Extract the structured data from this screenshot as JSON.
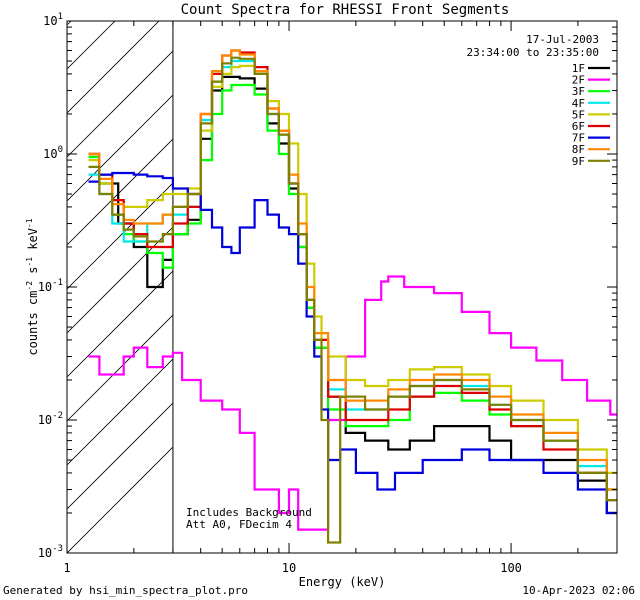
{
  "chart_data": {
    "type": "line",
    "title": "Count Spectra for RHESSI Front Segments",
    "xlabel": "Energy (keV)",
    "ylabel_parts": [
      "counts cm",
      "-2",
      " s",
      "-1",
      " keV",
      "-1"
    ],
    "xscale": "log",
    "yscale": "log",
    "xlim": [
      1,
      300
    ],
    "ylim": [
      0.001,
      10
    ],
    "x_ticks": [
      {
        "value": 1,
        "label": "1"
      },
      {
        "value": 10,
        "label": "10"
      },
      {
        "value": 100,
        "label": "100"
      }
    ],
    "y_ticks": [
      {
        "value": 0.001,
        "base": "10",
        "exp": "-3"
      },
      {
        "value": 0.01,
        "base": "10",
        "exp": "-2"
      },
      {
        "value": 0.1,
        "base": "10",
        "exp": "-1"
      },
      {
        "value": 1,
        "base": "10",
        "exp": "0"
      },
      {
        "value": 10,
        "base": "10",
        "exp": "1"
      }
    ],
    "shaded_region": {
      "x": [
        1,
        3
      ],
      "style": "diagonal hatch"
    },
    "date_label": "17-Jul-2003",
    "time_label": "23:34:00 to 23:35:00",
    "annotations": [
      "Includes Background",
      "Att A0, FDecim 4"
    ],
    "legend_position": "top-right",
    "series": [
      {
        "name": "1F",
        "color": "#000000",
        "points": [
          [
            1.25,
            1.0
          ],
          [
            1.4,
            0.6
          ],
          [
            1.7,
            0.3
          ],
          [
            2.0,
            0.2
          ],
          [
            2.3,
            0.1
          ],
          [
            2.7,
            0.16
          ],
          [
            3.0,
            0.25
          ],
          [
            3.5,
            0.32
          ],
          [
            4,
            1.3
          ],
          [
            4.5,
            3.0
          ],
          [
            5,
            3.8
          ],
          [
            5.5,
            3.8
          ],
          [
            6,
            3.7
          ],
          [
            7,
            3.1
          ],
          [
            8,
            1.7
          ],
          [
            9,
            1.2
          ],
          [
            10,
            0.55
          ],
          [
            11,
            0.2
          ],
          [
            12,
            0.07
          ],
          [
            13,
            0.035
          ],
          [
            15,
            0.015
          ],
          [
            18,
            0.008
          ],
          [
            22,
            0.007
          ],
          [
            28,
            0.006
          ],
          [
            35,
            0.007
          ],
          [
            45,
            0.009
          ],
          [
            60,
            0.009
          ],
          [
            80,
            0.007
          ],
          [
            100,
            0.005
          ],
          [
            140,
            0.005
          ],
          [
            200,
            0.0035
          ],
          [
            270,
            0.002
          ]
        ]
      },
      {
        "name": "2F",
        "color": "#ff00ff",
        "points": [
          [
            1.25,
            0.03
          ],
          [
            1.4,
            0.022
          ],
          [
            1.6,
            0.022
          ],
          [
            1.8,
            0.03
          ],
          [
            2.0,
            0.035
          ],
          [
            2.3,
            0.025
          ],
          [
            2.7,
            0.03
          ],
          [
            3.0,
            0.032
          ],
          [
            3.3,
            0.02
          ],
          [
            4,
            0.014
          ],
          [
            5,
            0.012
          ],
          [
            6,
            0.008
          ],
          [
            7,
            0.003
          ],
          [
            8,
            0.003
          ],
          [
            9,
            0.002
          ],
          [
            10,
            0.003
          ],
          [
            11,
            0.0015
          ],
          [
            12,
            0.0015
          ],
          [
            15,
            0.01
          ],
          [
            18,
            0.03
          ],
          [
            22,
            0.08
          ],
          [
            26,
            0.11
          ],
          [
            28,
            0.12
          ],
          [
            33,
            0.1
          ],
          [
            45,
            0.09
          ],
          [
            60,
            0.065
          ],
          [
            80,
            0.045
          ],
          [
            100,
            0.035
          ],
          [
            130,
            0.028
          ],
          [
            170,
            0.02
          ],
          [
            220,
            0.014
          ],
          [
            280,
            0.011
          ]
        ]
      },
      {
        "name": "3F",
        "color": "#00ff00",
        "points": [
          [
            1.25,
            0.95
          ],
          [
            1.4,
            0.6
          ],
          [
            1.6,
            0.35
          ],
          [
            1.8,
            0.25
          ],
          [
            2.0,
            0.22
          ],
          [
            2.3,
            0.18
          ],
          [
            2.7,
            0.14
          ],
          [
            3.0,
            0.25
          ],
          [
            3.5,
            0.3
          ],
          [
            4,
            0.9
          ],
          [
            4.5,
            2.0
          ],
          [
            5,
            3.0
          ],
          [
            5.5,
            3.3
          ],
          [
            6,
            3.3
          ],
          [
            7,
            2.8
          ],
          [
            8,
            1.5
          ],
          [
            9,
            1.0
          ],
          [
            10,
            0.5
          ],
          [
            11,
            0.2
          ],
          [
            12,
            0.07
          ],
          [
            13,
            0.035
          ],
          [
            15,
            0.012
          ],
          [
            18,
            0.009
          ],
          [
            22,
            0.009
          ],
          [
            28,
            0.01
          ],
          [
            35,
            0.015
          ],
          [
            45,
            0.016
          ],
          [
            60,
            0.014
          ],
          [
            80,
            0.011
          ],
          [
            100,
            0.009
          ],
          [
            140,
            0.007
          ],
          [
            200,
            0.004
          ],
          [
            270,
            0.003
          ]
        ]
      },
      {
        "name": "4F",
        "color": "#00e8e8",
        "points": [
          [
            1.25,
            0.7
          ],
          [
            1.4,
            0.5
          ],
          [
            1.6,
            0.3
          ],
          [
            1.8,
            0.22
          ],
          [
            2.0,
            0.22
          ],
          [
            2.3,
            0.3
          ],
          [
            2.7,
            0.35
          ],
          [
            3.0,
            0.35
          ],
          [
            3.5,
            0.4
          ],
          [
            4,
            1.8
          ],
          [
            4.5,
            3.5
          ],
          [
            5,
            4.5
          ],
          [
            5.5,
            5.0
          ],
          [
            6,
            5.0
          ],
          [
            7,
            4.0
          ],
          [
            8,
            2.0
          ],
          [
            9,
            1.4
          ],
          [
            10,
            0.6
          ],
          [
            11,
            0.25
          ],
          [
            12,
            0.08
          ],
          [
            13,
            0.04
          ],
          [
            15,
            0.017
          ],
          [
            18,
            0.012
          ],
          [
            22,
            0.012
          ],
          [
            28,
            0.015
          ],
          [
            35,
            0.018
          ],
          [
            45,
            0.02
          ],
          [
            60,
            0.018
          ],
          [
            80,
            0.013
          ],
          [
            100,
            0.01
          ],
          [
            140,
            0.007
          ],
          [
            200,
            0.0045
          ],
          [
            270,
            0.003
          ]
        ]
      },
      {
        "name": "5F",
        "color": "#cccc00",
        "points": [
          [
            1.25,
            0.9
          ],
          [
            1.4,
            0.6
          ],
          [
            1.6,
            0.45
          ],
          [
            1.8,
            0.4
          ],
          [
            2.0,
            0.4
          ],
          [
            2.3,
            0.45
          ],
          [
            2.7,
            0.5
          ],
          [
            3.0,
            0.5
          ],
          [
            3.5,
            0.55
          ],
          [
            4,
            1.5
          ],
          [
            4.5,
            3.2
          ],
          [
            5,
            4.0
          ],
          [
            5.5,
            4.5
          ],
          [
            6,
            4.6
          ],
          [
            7,
            4.0
          ],
          [
            8,
            2.5
          ],
          [
            9,
            2.0
          ],
          [
            10,
            1.2
          ],
          [
            11,
            0.5
          ],
          [
            12,
            0.15
          ],
          [
            13,
            0.06
          ],
          [
            14,
            0.04
          ],
          [
            15,
            0.03
          ],
          [
            18,
            0.02
          ],
          [
            22,
            0.018
          ],
          [
            28,
            0.02
          ],
          [
            35,
            0.024
          ],
          [
            45,
            0.025
          ],
          [
            60,
            0.022
          ],
          [
            80,
            0.018
          ],
          [
            100,
            0.014
          ],
          [
            140,
            0.01
          ],
          [
            200,
            0.006
          ],
          [
            270,
            0.004
          ]
        ]
      },
      {
        "name": "6F",
        "color": "#dd0000",
        "points": [
          [
            1.25,
            1.0
          ],
          [
            1.4,
            0.7
          ],
          [
            1.6,
            0.45
          ],
          [
            1.8,
            0.3
          ],
          [
            2.0,
            0.25
          ],
          [
            2.3,
            0.2
          ],
          [
            2.7,
            0.2
          ],
          [
            3.0,
            0.3
          ],
          [
            3.5,
            0.4
          ],
          [
            4,
            2.0
          ],
          [
            4.5,
            4.0
          ],
          [
            5,
            5.5
          ],
          [
            5.5,
            6.0
          ],
          [
            6,
            5.8
          ],
          [
            7,
            4.5
          ],
          [
            8,
            2.2
          ],
          [
            9,
            1.5
          ],
          [
            10,
            0.6
          ],
          [
            11,
            0.25
          ],
          [
            12,
            0.08
          ],
          [
            13,
            0.04
          ],
          [
            15,
            0.015
          ],
          [
            18,
            0.01
          ],
          [
            22,
            0.01
          ],
          [
            28,
            0.012
          ],
          [
            35,
            0.015
          ],
          [
            45,
            0.018
          ],
          [
            60,
            0.016
          ],
          [
            80,
            0.012
          ],
          [
            100,
            0.009
          ],
          [
            140,
            0.006
          ],
          [
            200,
            0.004
          ],
          [
            270,
            0.0025
          ]
        ]
      },
      {
        "name": "7F",
        "color": "#0000dd",
        "points": [
          [
            1.25,
            0.62
          ],
          [
            1.4,
            0.7
          ],
          [
            1.6,
            0.72
          ],
          [
            1.8,
            0.72
          ],
          [
            2.0,
            0.7
          ],
          [
            2.3,
            0.68
          ],
          [
            2.7,
            0.66
          ],
          [
            3.0,
            0.55
          ],
          [
            3.5,
            0.5
          ],
          [
            4,
            0.38
          ],
          [
            4.5,
            0.28
          ],
          [
            5,
            0.2
          ],
          [
            5.5,
            0.18
          ],
          [
            6,
            0.28
          ],
          [
            7,
            0.45
          ],
          [
            8,
            0.35
          ],
          [
            9,
            0.28
          ],
          [
            10,
            0.25
          ],
          [
            11,
            0.15
          ],
          [
            12,
            0.06
          ],
          [
            13,
            0.03
          ],
          [
            14,
            0.012
          ],
          [
            15,
            0.005
          ],
          [
            17,
            0.006
          ],
          [
            20,
            0.004
          ],
          [
            25,
            0.003
          ],
          [
            30,
            0.004
          ],
          [
            40,
            0.005
          ],
          [
            60,
            0.006
          ],
          [
            80,
            0.005
          ],
          [
            100,
            0.005
          ],
          [
            140,
            0.004
          ],
          [
            200,
            0.003
          ],
          [
            270,
            0.002
          ]
        ]
      },
      {
        "name": "8F",
        "color": "#ff8800",
        "points": [
          [
            1.25,
            1.0
          ],
          [
            1.4,
            0.65
          ],
          [
            1.6,
            0.42
          ],
          [
            1.8,
            0.32
          ],
          [
            2.0,
            0.3
          ],
          [
            2.3,
            0.3
          ],
          [
            2.7,
            0.35
          ],
          [
            3.0,
            0.4
          ],
          [
            3.5,
            0.5
          ],
          [
            4,
            2.0
          ],
          [
            4.5,
            4.2
          ],
          [
            5,
            5.5
          ],
          [
            5.5,
            6.0
          ],
          [
            6,
            5.6
          ],
          [
            7,
            4.2
          ],
          [
            8,
            2.2
          ],
          [
            9,
            1.5
          ],
          [
            10,
            0.7
          ],
          [
            11,
            0.3
          ],
          [
            12,
            0.1
          ],
          [
            13,
            0.045
          ],
          [
            15,
            0.02
          ],
          [
            18,
            0.014
          ],
          [
            22,
            0.014
          ],
          [
            28,
            0.017
          ],
          [
            35,
            0.02
          ],
          [
            45,
            0.022
          ],
          [
            60,
            0.02
          ],
          [
            80,
            0.015
          ],
          [
            100,
            0.011
          ],
          [
            140,
            0.008
          ],
          [
            200,
            0.005
          ],
          [
            270,
            0.003
          ]
        ]
      },
      {
        "name": "9F",
        "color": "#808000",
        "points": [
          [
            1.25,
            0.8
          ],
          [
            1.4,
            0.5
          ],
          [
            1.6,
            0.35
          ],
          [
            1.8,
            0.27
          ],
          [
            2.0,
            0.24
          ],
          [
            2.3,
            0.22
          ],
          [
            2.7,
            0.25
          ],
          [
            3.0,
            0.4
          ],
          [
            3.5,
            0.5
          ],
          [
            4,
            1.7
          ],
          [
            4.5,
            3.5
          ],
          [
            5,
            4.8
          ],
          [
            5.5,
            5.3
          ],
          [
            6,
            5.2
          ],
          [
            7,
            4.0
          ],
          [
            8,
            2.0
          ],
          [
            9,
            1.4
          ],
          [
            10,
            0.6
          ],
          [
            11,
            0.25
          ],
          [
            12,
            0.08
          ],
          [
            13,
            0.04
          ],
          [
            14,
            0.01
          ],
          [
            15,
            0.0012
          ],
          [
            17,
            0.015
          ],
          [
            22,
            0.012
          ],
          [
            28,
            0.015
          ],
          [
            35,
            0.018
          ],
          [
            45,
            0.02
          ],
          [
            60,
            0.017
          ],
          [
            80,
            0.013
          ],
          [
            100,
            0.01
          ],
          [
            140,
            0.007
          ],
          [
            200,
            0.004
          ],
          [
            270,
            0.0025
          ]
        ]
      }
    ]
  },
  "footer": {
    "generated_by": "Generated by hsi_min_spectra_plot.pro",
    "timestamp": "10-Apr-2023 02:06"
  }
}
